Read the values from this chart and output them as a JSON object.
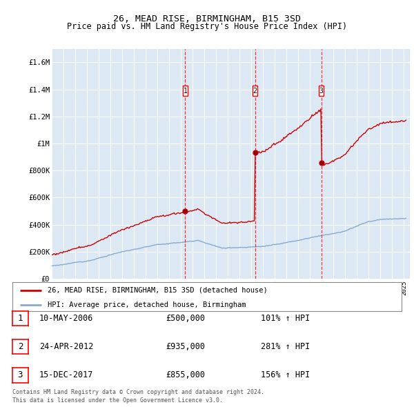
{
  "title": "26, MEAD RISE, BIRMINGHAM, B15 3SD",
  "subtitle": "Price paid vs. HM Land Registry's House Price Index (HPI)",
  "ylabel_vals": [
    0,
    200000,
    400000,
    600000,
    800000,
    1000000,
    1200000,
    1400000,
    1600000
  ],
  "ylabel_strs": [
    "£0",
    "£200K",
    "£400K",
    "£600K",
    "£800K",
    "£1M",
    "£1.2M",
    "£1.4M",
    "£1.6M"
  ],
  "ylim": [
    0,
    1700000
  ],
  "xlim_start": 1995.0,
  "xlim_end": 2025.5,
  "background_color": "#dce9f5",
  "grid_color": "#ffffff",
  "sale_events": [
    {
      "num": 1,
      "year": 2006.37,
      "price": 500000,
      "date_str": "10-MAY-2006",
      "pct": "101%"
    },
    {
      "num": 2,
      "year": 2012.32,
      "price": 935000,
      "date_str": "24-APR-2012",
      "pct": "281%"
    },
    {
      "num": 3,
      "year": 2017.96,
      "price": 855000,
      "date_str": "15-DEC-2017",
      "pct": "156%"
    }
  ],
  "legend_entry1": "26, MEAD RISE, BIRMINGHAM, B15 3SD (detached house)",
  "legend_entry2": "HPI: Average price, detached house, Birmingham",
  "footnote1": "Contains HM Land Registry data © Crown copyright and database right 2024.",
  "footnote2": "This data is licensed under the Open Government Licence v3.0.",
  "red_color": "#cc0000",
  "blue_color": "#88aacc"
}
